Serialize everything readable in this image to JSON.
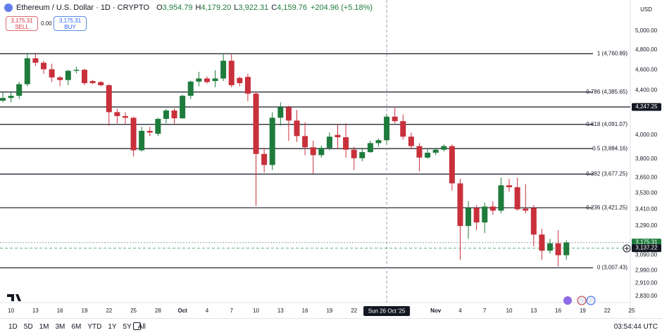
{
  "header": {
    "title": "Ethereum / U.S. Dollar · 1D · CRYPTO",
    "ohlc": [
      {
        "key": "O",
        "value": "3,954.79"
      },
      {
        "key": "H",
        "value": "4,179.20"
      },
      {
        "key": "L",
        "value": "3,922.31"
      },
      {
        "key": "C",
        "value": "4,159.76"
      }
    ],
    "change": "+204.96 (+5.18%)",
    "currency": "USD"
  },
  "trade": {
    "sell_price": "3,175.31",
    "sell": "SELL",
    "spread": "0.00",
    "buy_price": "3,175.31",
    "buy": "BUY"
  },
  "toolbar": {
    "ranges": [
      "1D",
      "5D",
      "1M",
      "3M",
      "6M",
      "YTD",
      "1Y",
      "5Y",
      "All"
    ],
    "time": "03:54:44 UTC"
  },
  "chart_data": {
    "type": "candlestick",
    "log_scale": true,
    "up_color": "#1e7b3c",
    "down_color": "#c8303b",
    "x": [
      "2025-09-09",
      "2025-09-10",
      "2025-09-11",
      "2025-09-12",
      "2025-09-13",
      "2025-09-14",
      "2025-09-15",
      "2025-09-16",
      "2025-09-17",
      "2025-09-18",
      "2025-09-19",
      "2025-09-20",
      "2025-09-21",
      "2025-09-22",
      "2025-09-23",
      "2025-09-24",
      "2025-09-25",
      "2025-09-26",
      "2025-09-27",
      "2025-09-28",
      "2025-09-29",
      "2025-09-30",
      "2025-10-01",
      "2025-10-02",
      "2025-10-03",
      "2025-10-04",
      "2025-10-05",
      "2025-10-06",
      "2025-10-07",
      "2025-10-08",
      "2025-10-09",
      "2025-10-10",
      "2025-10-11",
      "2025-10-12",
      "2025-10-13",
      "2025-10-14",
      "2025-10-15",
      "2025-10-16",
      "2025-10-17",
      "2025-10-18",
      "2025-10-19",
      "2025-10-20",
      "2025-10-21",
      "2025-10-22",
      "2025-10-23",
      "2025-10-24",
      "2025-10-25",
      "2025-10-26",
      "2025-10-27",
      "2025-10-28",
      "2025-10-29",
      "2025-10-30",
      "2025-10-31",
      "2025-11-01",
      "2025-11-02",
      "2025-11-03",
      "2025-11-04",
      "2025-11-05",
      "2025-11-06",
      "2025-11-07",
      "2025-11-08",
      "2025-11-09",
      "2025-11-10",
      "2025-11-11",
      "2025-11-12",
      "2025-11-13",
      "2025-11-14",
      "2025-11-15",
      "2025-11-16",
      "2025-11-17"
    ],
    "open": [
      4305,
      4330,
      4350,
      4460,
      4715,
      4670,
      4605,
      4525,
      4500,
      4590,
      4600,
      4490,
      4480,
      4450,
      4200,
      4165,
      4150,
      3870,
      4035,
      4010,
      4140,
      4215,
      4145,
      4350,
      4485,
      4515,
      4490,
      4515,
      4690,
      4520,
      4530,
      4370,
      3840,
      3750,
      4150,
      4245,
      4125,
      3990,
      3895,
      3830,
      3890,
      4000,
      3980,
      3875,
      3805,
      3855,
      3930,
      3954.79,
      4160,
      4120,
      3985,
      3905,
      3810,
      3850,
      3875,
      3905,
      3605,
      3290,
      3420,
      3315,
      3430,
      3400,
      3590,
      3575,
      3415,
      3420,
      3230,
      3120,
      3170,
      3090
    ],
    "high": [
      4380,
      4385,
      4480,
      4770,
      4770,
      4690,
      4660,
      4540,
      4600,
      4630,
      4610,
      4500,
      4490,
      4460,
      4230,
      4200,
      4160,
      4070,
      4070,
      4150,
      4230,
      4235,
      4360,
      4495,
      4580,
      4535,
      4595,
      4755,
      4755,
      4535,
      4560,
      4390,
      3890,
      4200,
      4290,
      4260,
      4220,
      4110,
      3950,
      3910,
      4020,
      4090,
      4100,
      3900,
      3890,
      3950,
      3970,
      4179.2,
      4250,
      4180,
      4020,
      3930,
      3880,
      3890,
      3920,
      3920,
      3640,
      3470,
      3440,
      3460,
      3470,
      3650,
      3640,
      3650,
      3600,
      3440,
      3270,
      3200,
      3260,
      3190
    ],
    "low": [
      4290,
      4290,
      4320,
      4440,
      4640,
      4560,
      4480,
      4440,
      4450,
      4565,
      4450,
      4460,
      4440,
      4080,
      4100,
      4090,
      3820,
      3860,
      3990,
      3990,
      4100,
      4090,
      4140,
      4320,
      4440,
      4465,
      4430,
      4490,
      4430,
      4440,
      4300,
      3435,
      3690,
      3710,
      4080,
      3950,
      3940,
      3830,
      3680,
      3810,
      3870,
      3880,
      3810,
      3710,
      3780,
      3850,
      3900,
      3922.31,
      4100,
      3960,
      3880,
      3700,
      3800,
      3830,
      3860,
      3550,
      3060,
      3200,
      3260,
      3240,
      3370,
      3380,
      3540,
      3400,
      3380,
      3150,
      3060,
      3100,
      3015,
      3060
    ],
    "close": [
      4330,
      4350,
      4460,
      4715,
      4670,
      4605,
      4525,
      4500,
      4590,
      4600,
      4470,
      4470,
      4450,
      4200,
      4165,
      4150,
      3870,
      4035,
      4020,
      4140,
      4215,
      4145,
      4350,
      4485,
      4515,
      4480,
      4515,
      4690,
      4450,
      4470,
      4370,
      3840,
      3750,
      4150,
      4245,
      4125,
      3990,
      3895,
      3830,
      3890,
      3985,
      3980,
      3875,
      3805,
      3855,
      3930,
      3955,
      4159.76,
      4120,
      3985,
      3905,
      3810,
      3850,
      3875,
      3905,
      3605,
      3290,
      3420,
      3315,
      3430,
      3400,
      3590,
      3575,
      3410,
      3400,
      3230,
      3120,
      3170,
      3090,
      3175.31
    ],
    "xlim": [
      "2025-09-09",
      "2025-11-25"
    ],
    "xticks": [
      {
        "value": "2025-09-10",
        "label": "10"
      },
      {
        "value": "2025-09-13",
        "label": "13"
      },
      {
        "value": "2025-09-16",
        "label": "16"
      },
      {
        "value": "2025-09-19",
        "label": "19"
      },
      {
        "value": "2025-09-22",
        "label": "22"
      },
      {
        "value": "2025-09-25",
        "label": "25"
      },
      {
        "value": "2025-09-28",
        "label": "28"
      },
      {
        "value": "2025-10-01",
        "label": "Oct"
      },
      {
        "value": "2025-10-04",
        "label": "4"
      },
      {
        "value": "2025-10-07",
        "label": "7"
      },
      {
        "value": "2025-10-10",
        "label": "10"
      },
      {
        "value": "2025-10-13",
        "label": "13"
      },
      {
        "value": "2025-10-16",
        "label": "16"
      },
      {
        "value": "2025-10-19",
        "label": "19"
      },
      {
        "value": "2025-10-22",
        "label": "22"
      },
      {
        "value": "2025-11-01",
        "label": "Nov"
      },
      {
        "value": "2025-11-04",
        "label": "4"
      },
      {
        "value": "2025-11-07",
        "label": "7"
      },
      {
        "value": "2025-11-10",
        "label": "10"
      },
      {
        "value": "2025-11-13",
        "label": "13"
      },
      {
        "value": "2025-11-16",
        "label": "16"
      },
      {
        "value": "2025-11-19",
        "label": "19"
      },
      {
        "value": "2025-11-22",
        "label": "22"
      },
      {
        "value": "2025-11-25",
        "label": "25"
      }
    ],
    "ylim": [
      2791,
      5343
    ],
    "yticks": [
      {
        "value": 5000,
        "label": "5,000.00"
      },
      {
        "value": 4800,
        "label": "4,800.00"
      },
      {
        "value": 4600,
        "label": "4,600.00"
      },
      {
        "value": 4400,
        "label": "4,400.00"
      },
      {
        "value": 4000,
        "label": "4,000.00"
      },
      {
        "value": 3800,
        "label": "3,800.00"
      },
      {
        "value": 3650,
        "label": "3,650.00"
      },
      {
        "value": 3530,
        "label": "3,530.00"
      },
      {
        "value": 3410,
        "label": "3,410.00"
      },
      {
        "value": 3290,
        "label": "3,290.00"
      },
      {
        "value": 3090,
        "label": "3,090.00"
      },
      {
        "value": 2990,
        "label": "2,990.00"
      },
      {
        "value": 2910,
        "label": "2,910.00"
      },
      {
        "value": 2830,
        "label": "2,830.00"
      }
    ],
    "fib_levels": [
      {
        "label": "1 (4,760.89)",
        "value": 4760.89
      },
      {
        "label": "0.786 (4,385.65)",
        "value": 4385.65
      },
      {
        "label": "0.618 (4,091.07)",
        "value": 4091.07
      },
      {
        "label": "0.5 (3,884.16)",
        "value": 3884.16
      },
      {
        "label": "0.382 (3,677.25)",
        "value": 3677.25
      },
      {
        "label": "0.236 (3,421.25)",
        "value": 3421.25
      },
      {
        "label": "0 (3,007.43)",
        "value": 3007.43
      }
    ],
    "price_tags": [
      {
        "label": "4,247.25",
        "value": 4247.25,
        "color": "#131722",
        "line": "solid",
        "line_color": "#131722"
      },
      {
        "label": "3,175.31",
        "value": 3175.31,
        "color": "#1e7b3c",
        "line": "dotted",
        "line_color": "#9aa0a6"
      },
      {
        "label": "3,137.22",
        "value": 3137.22,
        "color": "#131722",
        "line": "dashed",
        "line_color": "#5fb37a"
      }
    ],
    "crosshair": {
      "x": "2025-10-26",
      "label": "Sun 26 Oct '25"
    }
  }
}
